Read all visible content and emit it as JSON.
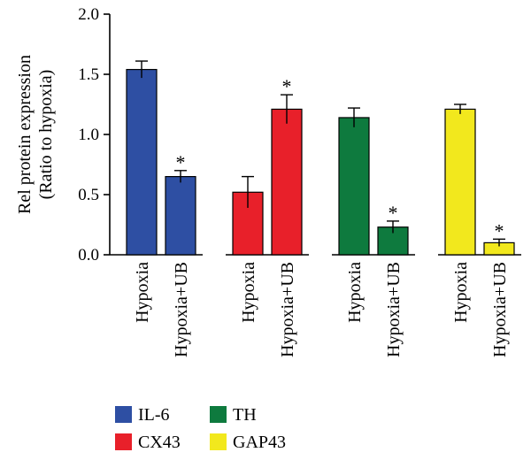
{
  "chart_data": {
    "type": "bar",
    "ylabel_lines": [
      "Rel protein expression",
      "(Ratio to hypoxia)"
    ],
    "ylim": [
      0,
      2.0
    ],
    "yticks": [
      0.0,
      0.5,
      1.0,
      1.5,
      2.0
    ],
    "ytick_labels": [
      "0.0",
      "0.5",
      "1.0",
      "1.5",
      "2.0"
    ],
    "significance_marker": "*",
    "groups": [
      {
        "name": "IL-6",
        "color": "#2E4FA3",
        "bars": [
          {
            "category": "Hypoxia",
            "value": 1.54,
            "error": 0.07,
            "significant": false
          },
          {
            "category": "Hypoxia+UB",
            "value": 0.65,
            "error": 0.05,
            "significant": true
          }
        ]
      },
      {
        "name": "CX43",
        "color": "#E8202A",
        "bars": [
          {
            "category": "Hypoxia",
            "value": 0.52,
            "error": 0.13,
            "significant": false
          },
          {
            "category": "Hypoxia+UB",
            "value": 1.21,
            "error": 0.12,
            "significant": true
          }
        ]
      },
      {
        "name": "TH",
        "color": "#0E7A3E",
        "bars": [
          {
            "category": "Hypoxia",
            "value": 1.14,
            "error": 0.08,
            "significant": false
          },
          {
            "category": "Hypoxia+UB",
            "value": 0.23,
            "error": 0.05,
            "significant": true
          }
        ]
      },
      {
        "name": "GAP43",
        "color": "#F2E81D",
        "bars": [
          {
            "category": "Hypoxia",
            "value": 1.21,
            "error": 0.04,
            "significant": false
          },
          {
            "category": "Hypoxia+UB",
            "value": 0.1,
            "error": 0.03,
            "significant": true
          }
        ]
      }
    ],
    "legend": {
      "position": "bottom-left",
      "order": [
        "IL-6",
        "TH",
        "CX43",
        "GAP43"
      ]
    }
  }
}
